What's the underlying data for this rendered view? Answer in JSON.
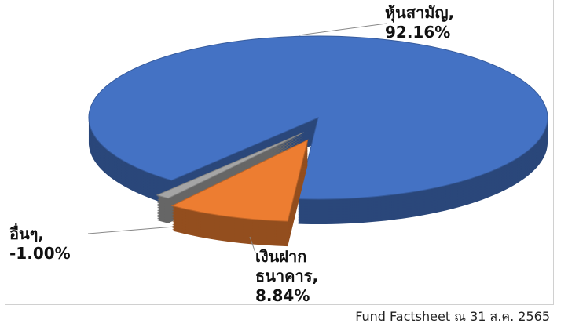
{
  "chart_data": {
    "type": "pie",
    "categories": [
      "หุ้นสามัญ,",
      "เงินฝากธนาคาร,",
      "อื่นๆ,"
    ],
    "values": [
      92.16,
      8.84,
      -1.0
    ],
    "value_labels": [
      "92.16%",
      "8.84%",
      "-1.00%"
    ],
    "colors": [
      "#4472c4",
      "#ed7d31",
      "#a5a5a5"
    ]
  },
  "footer": "Fund Factsheet ณ 31 ส.ค. 2565"
}
